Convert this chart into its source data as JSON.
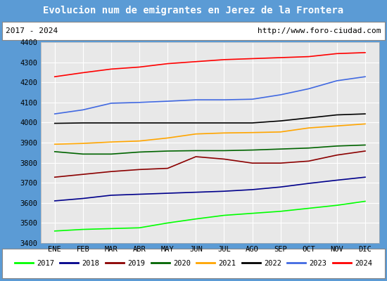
{
  "title": "Evolucion num de emigrantes en Jerez de la Frontera",
  "subtitle_left": "2017 - 2024",
  "subtitle_right": "http://www.foro-ciudad.com",
  "ylim": [
    3400,
    4400
  ],
  "yticks": [
    3400,
    3500,
    3600,
    3700,
    3800,
    3900,
    4000,
    4100,
    4200,
    4300,
    4400
  ],
  "months": [
    "ENE",
    "FEB",
    "MAR",
    "ABR",
    "MAY",
    "JUN",
    "JUL",
    "AGO",
    "SEP",
    "OCT",
    "NOV",
    "DIC"
  ],
  "series": {
    "2017": {
      "color": "#00ff00",
      "data": [
        3460,
        3468,
        3472,
        3476,
        3500,
        3520,
        3538,
        3548,
        3558,
        3573,
        3588,
        3608
      ]
    },
    "2018": {
      "color": "#00008b",
      "data": [
        3610,
        3622,
        3638,
        3643,
        3648,
        3653,
        3658,
        3666,
        3679,
        3697,
        3713,
        3728
      ]
    },
    "2019": {
      "color": "#8b0000",
      "data": [
        3728,
        3742,
        3756,
        3766,
        3772,
        3830,
        3818,
        3798,
        3798,
        3808,
        3838,
        3858
      ]
    },
    "2020": {
      "color": "#006400",
      "data": [
        3855,
        3843,
        3843,
        3853,
        3858,
        3860,
        3860,
        3863,
        3868,
        3873,
        3883,
        3888
      ]
    },
    "2021": {
      "color": "#ffa500",
      "data": [
        3892,
        3896,
        3903,
        3908,
        3923,
        3943,
        3948,
        3950,
        3953,
        3973,
        3983,
        3993
      ]
    },
    "2022": {
      "color": "#000000",
      "data": [
        3996,
        3998,
        3998,
        3998,
        3998,
        3998,
        3998,
        3998,
        4008,
        4023,
        4038,
        4043
      ]
    },
    "2023": {
      "color": "#4169e1",
      "data": [
        4043,
        4063,
        4096,
        4100,
        4106,
        4113,
        4113,
        4116,
        4138,
        4168,
        4208,
        4228
      ]
    },
    "2024": {
      "color": "#ff0000",
      "data": [
        4228,
        4248,
        4266,
        4276,
        4293,
        4303,
        4313,
        4318,
        4323,
        4328,
        4343,
        4348
      ]
    }
  },
  "title_bgcolor": "#5b9bd5",
  "title_fgcolor": "#ffffff",
  "plot_bgcolor": "#e8e8e8",
  "grid_color": "#ffffff",
  "outer_border_color": "#5b9bd5",
  "subtitle_bgcolor": "#ffffff",
  "legend_bgcolor": "#ffffff",
  "border_linewidth": 3
}
